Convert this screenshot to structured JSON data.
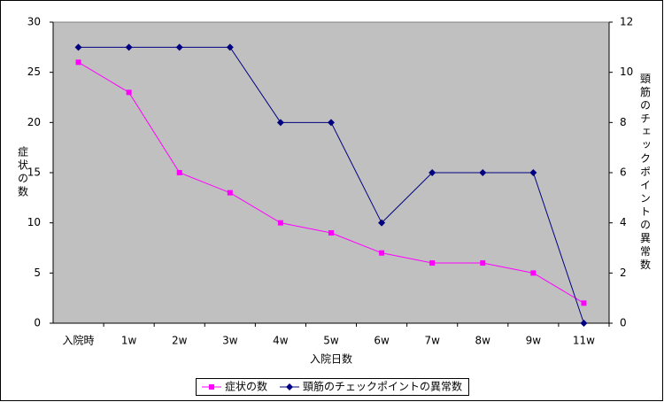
{
  "chart_data": {
    "type": "line",
    "x_label": "入院日数",
    "y_label": "症状の数",
    "y2_label": "頸筋のチェックポイントの異常数",
    "categories": [
      "入院時",
      "1w",
      "2w",
      "3w",
      "4w",
      "5w",
      "6w",
      "7w",
      "8w",
      "9w",
      "11w"
    ],
    "series": [
      {
        "name": "症状の数",
        "color": "#ff00ff",
        "marker": "square",
        "values": [
          26,
          23,
          15,
          13,
          10,
          9,
          7,
          6,
          6,
          5,
          2
        ]
      },
      {
        "name": "頸筋のチェックポイントの異常数",
        "color": "#000080",
        "marker": "diamond",
        "axis": "y2",
        "values": [
          11,
          11,
          11,
          11,
          8,
          8,
          4,
          6,
          6,
          6,
          0
        ]
      }
    ],
    "ylim": [
      0,
      30
    ],
    "yticks": [
      0,
      5,
      10,
      15,
      20,
      25,
      30
    ],
    "y2lim": [
      0,
      12
    ],
    "y2ticks": [
      0,
      2,
      4,
      6,
      8,
      10,
      12
    ],
    "plot_background": "#c0c0c0",
    "legend": "bottom"
  }
}
